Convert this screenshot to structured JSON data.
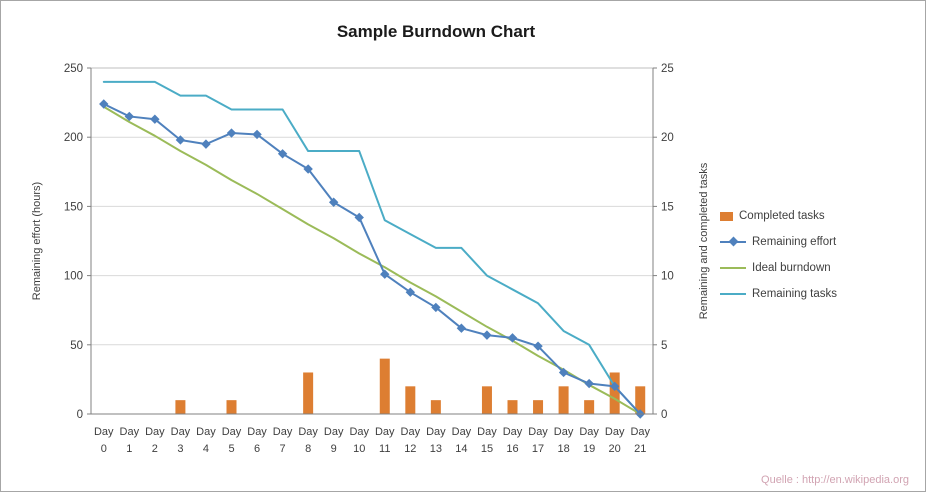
{
  "watermark": "Quelle : http://en.wikipedia.org",
  "chart_data": {
    "type": "combo",
    "title": "Sample Burndown Chart",
    "grid": "horizontal",
    "legend_position": "right",
    "x_axis": {
      "tick_prefix": "Day",
      "categories": [
        "0",
        "1",
        "2",
        "3",
        "4",
        "5",
        "6",
        "7",
        "8",
        "9",
        "10",
        "11",
        "12",
        "13",
        "14",
        "15",
        "16",
        "17",
        "18",
        "19",
        "20",
        "21"
      ]
    },
    "left_axis": {
      "title": "Remaining effort (hours)",
      "min": 0,
      "max": 250,
      "step": 50,
      "ticks": [
        0,
        50,
        100,
        150,
        200,
        250
      ]
    },
    "right_axis": {
      "title": "Remaining and completed tasks",
      "min": 0,
      "max": 25,
      "step": 5,
      "ticks": [
        0,
        5,
        10,
        15,
        20,
        25
      ]
    },
    "series": [
      {
        "name": "Completed tasks",
        "type": "bar",
        "axis": "right",
        "color": "#DD7E32",
        "values": [
          null,
          null,
          null,
          1,
          null,
          1,
          null,
          null,
          3,
          null,
          null,
          4,
          2,
          1,
          null,
          2,
          1,
          1,
          2,
          1,
          3,
          2
        ]
      },
      {
        "name": "Remaining effort",
        "type": "line",
        "marker": "diamond",
        "axis": "left",
        "color": "#4F81BD",
        "values": [
          224,
          215,
          213,
          198,
          195,
          203,
          202,
          188,
          177,
          153,
          142,
          101,
          88,
          77,
          62,
          57,
          55,
          49,
          30,
          22,
          20,
          0
        ]
      },
      {
        "name": "Ideal burndown",
        "type": "line",
        "axis": "left",
        "color": "#9BBB59",
        "values": [
          222,
          211,
          201,
          190,
          180,
          169,
          159,
          148,
          137,
          127,
          116,
          106,
          95,
          85,
          74,
          63,
          53,
          42,
          32,
          21,
          11,
          0
        ]
      },
      {
        "name": "Remaining tasks",
        "type": "line",
        "axis": "right",
        "color": "#4BACC6",
        "values": [
          24,
          24,
          24,
          23,
          23,
          22,
          22,
          22,
          19,
          19,
          19,
          14,
          13,
          12,
          12,
          10,
          9,
          8,
          6,
          5,
          2,
          0
        ]
      }
    ]
  }
}
